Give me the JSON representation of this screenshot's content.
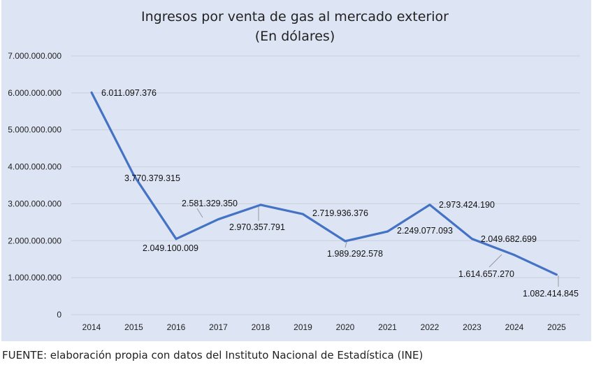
{
  "chart_data": {
    "type": "line",
    "title": "Ingresos por venta de gas al mercado exterior",
    "subtitle": "(En dólares)",
    "xlabel": "",
    "ylabel": "",
    "categories": [
      "2014",
      "2015",
      "2016",
      "2017",
      "2018",
      "2019",
      "2020",
      "2021",
      "2022",
      "2023",
      "2024",
      "2025"
    ],
    "values": [
      6011097376,
      3770379315,
      2049100009,
      2581329350,
      2970357791,
      2719936376,
      1989292578,
      2249077093,
      2973424190,
      2049682699,
      1614657270,
      1082414845
    ],
    "data_labels": [
      "6.011.097.376",
      "3.770.379.315",
      "2.049.100.009",
      "2.581.329.350",
      "2.970.357.791",
      "2.719.936.376",
      "1.989.292.578",
      "2.249.077.093",
      "2.973.424.190",
      "2.049.682.699",
      "1.614.657.270",
      "1.082.414.845"
    ],
    "ylim": [
      0,
      7000000000
    ],
    "y_ticks": [
      "0",
      "1.000.000.000",
      "2.000.000.000",
      "3.000.000.000",
      "4.000.000.000",
      "5.000.000.000",
      "6.000.000.000",
      "7.000.000.000"
    ],
    "grid": true,
    "legend": "none",
    "line_color": "#4472c4",
    "background_color": "#dde4f3"
  },
  "footer": "FUENTE: elaboración propia con datos del Instituto Nacional de Estadística (INE)"
}
